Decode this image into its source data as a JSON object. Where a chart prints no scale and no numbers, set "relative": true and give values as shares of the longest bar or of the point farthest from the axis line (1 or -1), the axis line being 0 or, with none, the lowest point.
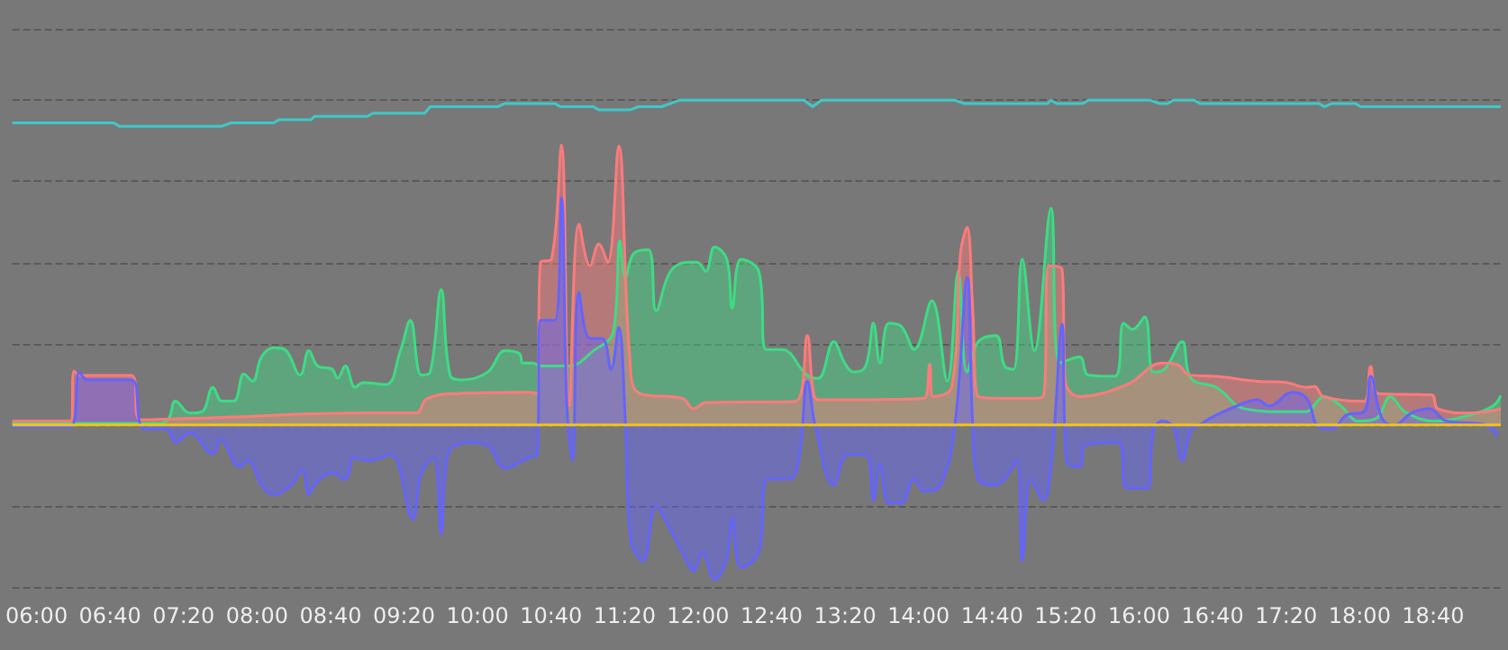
{
  "chart_data": {
    "type": "area",
    "relative": true,
    "grid": "y",
    "ref_lines": [
      {
        "axis": "y",
        "value": 0,
        "color": "#f5c518"
      }
    ],
    "xlim": [
      5.78,
      19.28
    ],
    "xticks": [
      {
        "value": 6,
        "label": "06:00"
      },
      {
        "value": 6.6667,
        "label": "06:40"
      },
      {
        "value": 7.3333,
        "label": "07:20"
      },
      {
        "value": 8,
        "label": "08:00"
      },
      {
        "value": 8.6667,
        "label": "08:40"
      },
      {
        "value": 9.3333,
        "label": "09:20"
      },
      {
        "value": 10,
        "label": "10:00"
      },
      {
        "value": 10.6667,
        "label": "10:40"
      },
      {
        "value": 11.3333,
        "label": "11:20"
      },
      {
        "value": 12,
        "label": "12:00"
      },
      {
        "value": 12.6667,
        "label": "12:40"
      },
      {
        "value": 13.3333,
        "label": "13:20"
      },
      {
        "value": 14,
        "label": "14:00"
      },
      {
        "value": 14.6667,
        "label": "14:40"
      },
      {
        "value": 15.3333,
        "label": "15:20"
      },
      {
        "value": 16,
        "label": "16:00"
      },
      {
        "value": 16.6667,
        "label": "16:40"
      },
      {
        "value": 17.3333,
        "label": "17:20"
      },
      {
        "value": 18,
        "label": "18:00"
      },
      {
        "value": 18.6667,
        "label": "18:40"
      }
    ],
    "series": [
      {
        "color": "#3ddc84",
        "x": [
          5.78,
          7.12,
          7.2,
          7.26,
          7.39,
          7.5,
          7.6,
          7.68,
          7.79,
          7.88,
          7.96,
          8.04,
          8.15,
          8.25,
          8.39,
          8.47,
          8.55,
          8.68,
          8.73,
          8.8,
          8.89,
          8.96,
          9.17,
          9.3,
          9.39,
          9.49,
          9.57,
          9.67,
          9.75,
          9.86,
          10.09,
          10.25,
          10.38,
          10.41,
          10.5,
          10.57,
          10.83,
          11.05,
          11.23,
          11.29,
          11.34,
          11.42,
          11.55,
          11.62,
          11.75,
          11.91,
          11.99,
          12.07,
          12.15,
          12.26,
          12.31,
          12.39,
          12.55,
          12.62,
          12.76,
          12.99,
          13.09,
          13.23,
          13.33,
          13.41,
          13.52,
          13.59,
          13.65,
          13.73,
          13.84,
          13.96,
          14.12,
          14.26,
          14.36,
          14.44,
          14.54,
          14.7,
          14.78,
          14.86,
          14.94,
          15.05,
          15.2,
          15.28,
          15.46,
          15.54,
          15.78,
          15.86,
          15.94,
          16.05,
          16.13,
          16.23,
          16.39,
          16.47,
          16.7,
          16.96,
          17.34,
          17.51,
          17.68,
          17.83,
          17.99,
          18.15,
          18.28,
          18.41,
          18.68,
          19.0,
          19.21,
          19.28
        ],
        "values": [
          0.004,
          0.004,
          0.02,
          0.073,
          0.036,
          0.04,
          0.115,
          0.073,
          0.073,
          0.156,
          0.134,
          0.209,
          0.237,
          0.232,
          0.153,
          0.228,
          0.181,
          0.171,
          0.143,
          0.181,
          0.115,
          0.13,
          0.124,
          0.228,
          0.322,
          0.153,
          0.162,
          0.416,
          0.153,
          0.138,
          0.162,
          0.228,
          0.219,
          0.19,
          0.19,
          0.181,
          0.181,
          0.228,
          0.285,
          0.567,
          0.454,
          0.529,
          0.539,
          0.351,
          0.473,
          0.501,
          0.501,
          0.473,
          0.548,
          0.51,
          0.36,
          0.51,
          0.473,
          0.232,
          0.232,
          0.152,
          0.143,
          0.256,
          0.19,
          0.162,
          0.181,
          0.313,
          0.19,
          0.313,
          0.304,
          0.232,
          0.382,
          0.134,
          0.473,
          0.162,
          0.256,
          0.275,
          0.181,
          0.171,
          0.51,
          0.228,
          0.667,
          0.19,
          0.209,
          0.153,
          0.149,
          0.313,
          0.294,
          0.332,
          0.162,
          0.171,
          0.256,
          0.143,
          0.115,
          0.049,
          0.04,
          0.04,
          0.087,
          0.058,
          0.011,
          0.019,
          0.087,
          0.04,
          0.011,
          0.03,
          0.058,
          0.09
        ]
      },
      {
        "color": "#ff7b7b",
        "x": [
          5.78,
          6.31,
          6.34,
          6.39,
          6.86,
          6.94,
          7.55,
          8.96,
          9.44,
          9.54,
          9.81,
          10.46,
          10.54,
          10.57,
          10.67,
          10.76,
          10.83,
          10.92,
          11.02,
          11.1,
          11.18,
          11.28,
          11.38,
          11.47,
          11.86,
          11.96,
          12.07,
          12.88,
          12.99,
          13.04,
          13.09,
          14.05,
          14.1,
          14.13,
          14.3,
          14.38,
          14.44,
          14.49,
          14.54,
          14.97,
          15.13,
          15.18,
          15.3,
          15.33,
          15.46,
          15.89,
          16.21,
          16.34,
          16.46,
          16.7,
          17.07,
          17.34,
          17.51,
          17.59,
          17.67,
          18.04,
          18.1,
          18.17,
          18.65,
          18.71,
          19.0,
          19.28
        ],
        "values": [
          0.011,
          0.011,
          0.166,
          0.152,
          0.152,
          0.015,
          0.021,
          0.036,
          0.036,
          0.08,
          0.096,
          0.1,
          0.096,
          0.5,
          0.51,
          0.862,
          0.058,
          0.618,
          0.49,
          0.557,
          0.5,
          0.859,
          0.209,
          0.096,
          0.081,
          0.049,
          0.068,
          0.072,
          0.275,
          0.115,
          0.077,
          0.081,
          0.186,
          0.087,
          0.115,
          0.529,
          0.608,
          0.36,
          0.087,
          0.081,
          0.087,
          0.49,
          0.48,
          0.134,
          0.087,
          0.124,
          0.19,
          0.186,
          0.153,
          0.149,
          0.134,
          0.13,
          0.115,
          0.118,
          0.087,
          0.072,
          0.18,
          0.096,
          0.092,
          0.049,
          0.036,
          0.049
        ]
      },
      {
        "color": "#6464ff",
        "x": [
          5.78,
          6.31,
          6.39,
          6.46,
          6.86,
          6.94,
          6.99,
          7.18,
          7.26,
          7.39,
          7.6,
          7.67,
          7.84,
          7.92,
          8.04,
          8.15,
          8.31,
          8.41,
          8.47,
          8.52,
          8.68,
          8.8,
          8.88,
          9.0,
          9.21,
          9.41,
          9.49,
          9.6,
          9.67,
          9.73,
          9.92,
          10.09,
          10.25,
          10.46,
          10.54,
          10.57,
          10.7,
          10.76,
          10.81,
          10.86,
          10.92,
          11.02,
          11.13,
          11.21,
          11.28,
          11.34,
          11.39,
          11.5,
          11.62,
          11.71,
          11.86,
          11.96,
          12.04,
          12.15,
          12.26,
          12.31,
          12.39,
          12.55,
          12.63,
          12.83,
          12.92,
          12.99,
          13.07,
          13.23,
          13.36,
          13.52,
          13.59,
          13.65,
          13.73,
          13.84,
          13.96,
          14.05,
          14.2,
          14.33,
          14.44,
          14.49,
          14.54,
          14.7,
          14.89,
          14.94,
          15.02,
          15.13,
          15.21,
          15.3,
          15.34,
          15.46,
          15.51,
          15.81,
          15.89,
          16.07,
          16.13,
          16.21,
          16.31,
          16.39,
          16.47,
          16.54,
          16.7,
          16.96,
          17.07,
          17.18,
          17.39,
          17.52,
          17.63,
          17.75,
          17.88,
          18.04,
          18.1,
          18.2,
          18.31,
          18.47,
          18.63,
          18.79,
          19.12,
          19.25
        ],
        "values": [
          -0.006,
          -0.006,
          0.162,
          0.138,
          0.138,
          -0.002,
          -0.013,
          -0.013,
          -0.055,
          -0.026,
          -0.09,
          -0.045,
          -0.13,
          -0.111,
          -0.186,
          -0.215,
          -0.186,
          -0.139,
          -0.215,
          -0.186,
          -0.149,
          -0.168,
          -0.102,
          -0.111,
          -0.092,
          -0.29,
          -0.149,
          -0.102,
          -0.337,
          -0.092,
          -0.055,
          -0.064,
          -0.134,
          -0.102,
          -0.092,
          0.322,
          0.322,
          0.699,
          0.058,
          -0.111,
          0.407,
          0.266,
          0.266,
          0.171,
          0.3,
          0.011,
          -0.356,
          -0.42,
          -0.252,
          -0.299,
          -0.394,
          -0.45,
          -0.394,
          -0.478,
          -0.412,
          -0.29,
          -0.441,
          -0.394,
          -0.168,
          -0.168,
          -0.092,
          0.134,
          -0.017,
          -0.186,
          -0.092,
          -0.092,
          -0.233,
          -0.121,
          -0.242,
          -0.242,
          -0.168,
          -0.205,
          -0.186,
          0.002,
          0.454,
          0.002,
          -0.168,
          -0.186,
          -0.111,
          -0.42,
          -0.168,
          -0.233,
          -0.092,
          0.31,
          -0.111,
          -0.13,
          -0.064,
          -0.055,
          -0.196,
          -0.196,
          -0.017,
          0.011,
          -0.008,
          -0.111,
          -0.017,
          -0.002,
          0.03,
          0.068,
          0.077,
          0.058,
          0.1,
          0.081,
          -0.008,
          -0.013,
          0.03,
          0.04,
          0.149,
          0.021,
          -0.002,
          0.036,
          0.049,
          0.011,
          0.002,
          -0.036
        ]
      },
      {
        "type": "line",
        "color": "#40c8c8",
        "x": [
          5.78,
          6.7,
          6.75,
          7.68,
          7.76,
          8.15,
          8.2,
          8.49,
          8.52,
          9.0,
          9.05,
          9.52,
          9.57,
          10.18,
          10.25,
          10.7,
          10.75,
          11.05,
          11.1,
          11.38,
          11.46,
          11.67,
          11.83,
          12.96,
          13.04,
          13.12,
          14.33,
          14.41,
          15.17,
          15.2,
          15.25,
          15.49,
          15.54,
          16.1,
          16.18,
          16.26,
          16.31,
          16.5,
          16.55,
          17.63,
          17.68,
          17.75,
          17.96,
          18.01,
          19.28
        ],
        "values": [
          0.93,
          0.93,
          0.92,
          0.92,
          0.93,
          0.93,
          0.94,
          0.94,
          0.95,
          0.95,
          0.96,
          0.96,
          0.98,
          0.98,
          0.99,
          0.99,
          0.98,
          0.98,
          0.97,
          0.97,
          0.98,
          0.98,
          1.0,
          1.0,
          0.98,
          1.0,
          1.0,
          0.99,
          0.99,
          1.0,
          0.99,
          0.99,
          1.0,
          1.0,
          0.99,
          0.99,
          1.0,
          1.0,
          0.99,
          0.99,
          0.98,
          0.99,
          0.99,
          0.98,
          0.98
        ]
      }
    ]
  }
}
